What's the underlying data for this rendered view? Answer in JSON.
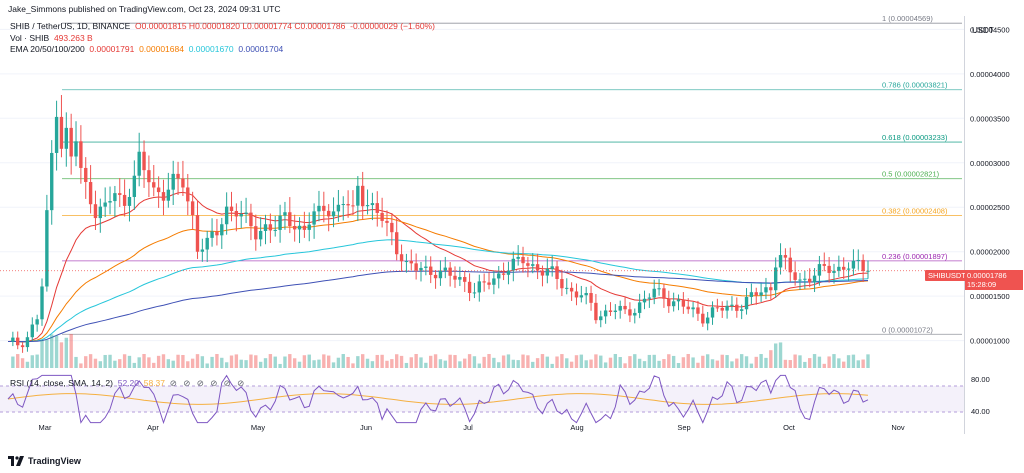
{
  "header": {
    "credit": "Jake_Simmons published on TradingView.com, Oct 23, 2024 09:31 UTC"
  },
  "legend": {
    "symbol": "SHIB / TetherUS, 1D, BINANCE",
    "ohlc": "O0.00001815 H0.00001820 L0.00001774 C0.00001786",
    "change": "-0.00000029 (−1.60%)",
    "vol_label": "Vol · SHIB",
    "vol_value": "493.263 B",
    "ema_label": "EMA 20/50/100/200",
    "ema20": "0.00001791",
    "ema50": "0.00001684",
    "ema100": "0.00001670",
    "ema200": "0.00001704"
  },
  "rsi_legend": {
    "label": "RSI (14, close, SMA, 14, 2)",
    "rsi": "52.20",
    "sma": "58.37"
  },
  "price_scale": {
    "currency": "USDT",
    "last_price": "0.00001786",
    "countdown": "15:28:09",
    "symbol_tag": "SHIBUSDT"
  },
  "footer": {
    "brand": "TradingView"
  },
  "colors": {
    "up": "#26a69a",
    "down": "#ef5350",
    "ema20": "#e53935",
    "ema50": "#f57c00",
    "ema100": "#26c6da",
    "ema200": "#3f51b5",
    "rsi": "#7e57c2",
    "rsi_sma": "#f5b041"
  },
  "chart_data": {
    "type": "candlestick",
    "x_axis_labels": [
      "Mar",
      "Apr",
      "May",
      "Jun",
      "Jul",
      "Aug",
      "Sep",
      "Oct",
      "Nov"
    ],
    "y_axis_ticks": [
      "0.00004500",
      "0.00004000",
      "0.00003500",
      "0.00003000",
      "0.00002500",
      "0.00002000",
      "0.00001500",
      "0.00001000"
    ],
    "ylim": [
      8.5e-06,
      4.65e-05
    ],
    "fibonacci": [
      {
        "label": "1 (0.00004569)",
        "value": 4.569e-05,
        "color": "#787b86"
      },
      {
        "label": "0.786 (0.00003821)",
        "value": 3.821e-05,
        "color": "#26a69a"
      },
      {
        "label": "0.618 (0.00003233)",
        "value": 3.233e-05,
        "color": "#089981"
      },
      {
        "label": "0.5 (0.00002821)",
        "value": 2.821e-05,
        "color": "#4caf50"
      },
      {
        "label": "0.382 (0.00002408)",
        "value": 2.408e-05,
        "color": "#f5a623"
      },
      {
        "label": "0.236 (0.00001897)",
        "value": 1.897e-05,
        "color": "#9c27b0"
      },
      {
        "label": "0 (0.00001072)",
        "value": 1.072e-05,
        "color": "#787b86"
      }
    ],
    "price_path": [
      [
        0,
        0.95
      ],
      [
        2,
        0.97
      ],
      [
        4,
        1.05
      ],
      [
        6,
        1.25
      ],
      [
        7,
        1.6
      ],
      [
        8,
        2.4
      ],
      [
        9,
        3.1
      ],
      [
        10,
        3.6
      ],
      [
        11,
        3.2
      ],
      [
        12,
        3.35
      ],
      [
        13,
        3.05
      ],
      [
        14,
        3.25
      ],
      [
        15,
        2.9
      ],
      [
        17,
        2.6
      ],
      [
        18,
        2.45
      ],
      [
        20,
        2.5
      ],
      [
        22,
        2.65
      ],
      [
        24,
        2.55
      ],
      [
        26,
        2.85
      ],
      [
        27,
        3.05
      ],
      [
        28,
        2.9
      ],
      [
        30,
        2.7
      ],
      [
        32,
        2.65
      ],
      [
        34,
        2.8
      ],
      [
        36,
        2.75
      ],
      [
        38,
        2.4
      ],
      [
        39,
        2.05
      ],
      [
        41,
        2.1
      ],
      [
        43,
        2.2
      ],
      [
        45,
        2.5
      ],
      [
        47,
        2.45
      ],
      [
        49,
        2.35
      ],
      [
        51,
        2.2
      ],
      [
        53,
        2.3
      ],
      [
        55,
        2.25
      ],
      [
        57,
        2.4
      ],
      [
        59,
        2.3
      ],
      [
        61,
        2.25
      ],
      [
        63,
        2.4
      ],
      [
        65,
        2.5
      ],
      [
        67,
        2.45
      ],
      [
        69,
        2.55
      ],
      [
        71,
        2.45
      ],
      [
        72,
        2.75
      ],
      [
        73,
        2.6
      ],
      [
        75,
        2.5
      ],
      [
        77,
        2.35
      ],
      [
        79,
        2.2
      ],
      [
        80,
        2.05
      ],
      [
        82,
        1.85
      ],
      [
        84,
        1.8
      ],
      [
        86,
        1.8
      ],
      [
        88,
        1.78
      ],
      [
        90,
        1.75
      ],
      [
        92,
        1.7
      ],
      [
        94,
        1.68
      ],
      [
        96,
        1.55
      ],
      [
        98,
        1.62
      ],
      [
        100,
        1.7
      ],
      [
        102,
        1.8
      ],
      [
        104,
        1.85
      ],
      [
        106,
        1.9
      ],
      [
        108,
        1.85
      ],
      [
        110,
        1.78
      ],
      [
        112,
        1.75
      ],
      [
        114,
        1.65
      ],
      [
        116,
        1.55
      ],
      [
        118,
        1.5
      ],
      [
        120,
        1.4
      ],
      [
        121,
        1.3
      ],
      [
        123,
        1.32
      ],
      [
        125,
        1.35
      ],
      [
        127,
        1.3
      ],
      [
        129,
        1.38
      ],
      [
        131,
        1.45
      ],
      [
        133,
        1.55
      ],
      [
        135,
        1.5
      ],
      [
        137,
        1.45
      ],
      [
        139,
        1.38
      ],
      [
        141,
        1.32
      ],
      [
        143,
        1.28
      ],
      [
        145,
        1.32
      ],
      [
        147,
        1.35
      ],
      [
        149,
        1.38
      ],
      [
        151,
        1.42
      ],
      [
        153,
        1.48
      ],
      [
        155,
        1.55
      ],
      [
        157,
        1.6
      ],
      [
        158,
        1.9
      ],
      [
        159,
        1.95
      ],
      [
        161,
        1.75
      ],
      [
        163,
        1.68
      ],
      [
        165,
        1.72
      ],
      [
        167,
        1.78
      ],
      [
        169,
        1.8
      ],
      [
        171,
        1.82
      ],
      [
        173,
        1.85
      ],
      [
        175,
        1.83
      ],
      [
        177,
        1.786
      ]
    ],
    "rsi_levels": {
      "upper": 70,
      "lower": 30,
      "label_top": "80.00",
      "label_mid": "40.00"
    }
  }
}
